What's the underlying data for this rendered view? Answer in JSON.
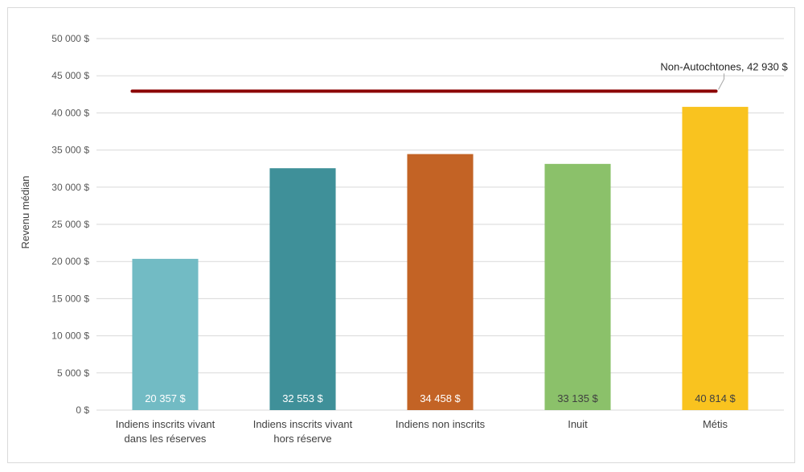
{
  "chart_data": {
    "type": "bar",
    "title": "",
    "xlabel": "",
    "ylabel": "Revenu médian",
    "ylim": [
      0,
      50000
    ],
    "y_ticks": [
      {
        "value": 0,
        "label": "0 $"
      },
      {
        "value": 5000,
        "label": "5 000 $"
      },
      {
        "value": 10000,
        "label": "10 000 $"
      },
      {
        "value": 15000,
        "label": "15 000 $"
      },
      {
        "value": 20000,
        "label": "20 000 $"
      },
      {
        "value": 25000,
        "label": "25 000 $"
      },
      {
        "value": 30000,
        "label": "30 000 $"
      },
      {
        "value": 35000,
        "label": "35 000 $"
      },
      {
        "value": 40000,
        "label": "40 000 $"
      },
      {
        "value": 45000,
        "label": "45 000 $"
      },
      {
        "value": 50000,
        "label": "50 000 $"
      }
    ],
    "grid": true,
    "categories": [
      [
        "Indiens inscrits vivant",
        "dans les réserves"
      ],
      [
        "Indiens inscrits vivant",
        "hors réserve"
      ],
      [
        "Indiens non inscrits"
      ],
      [
        "Inuit"
      ],
      [
        "Métis"
      ]
    ],
    "values": [
      20357,
      32553,
      34458,
      33135,
      40814
    ],
    "value_labels": [
      "20 357 $",
      "32 553 $",
      "34 458 $",
      "33 135 $",
      "40 814 $"
    ],
    "bar_colors": [
      "#72bbc4",
      "#3f9099",
      "#c36325",
      "#8bc16a",
      "#f9c31f"
    ],
    "label_colors": [
      "#ffffff",
      "#ffffff",
      "#ffffff",
      "#404040",
      "#404040"
    ],
    "reference_line": {
      "value": 42930,
      "label": "Non-Autochtones, 42 930 $",
      "color": "#8b0000"
    }
  }
}
